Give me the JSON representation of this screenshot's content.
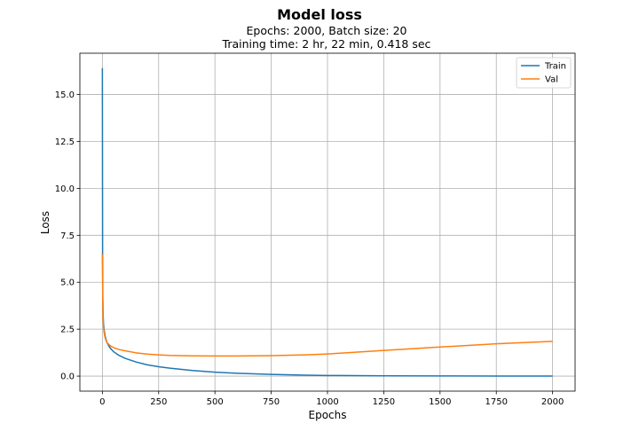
{
  "chart_data": {
    "type": "line",
    "title": "Model loss",
    "subtitle_lines": [
      "Epochs: 2000, Batch size: 20",
      "Training time: 2 hr, 22 min, 0.418 sec"
    ],
    "xlabel": "Epochs",
    "ylabel": "Loss",
    "xlim": [
      -100,
      2100
    ],
    "ylim": [
      -0.8,
      17.2
    ],
    "xticks": [
      0,
      250,
      500,
      750,
      1000,
      1250,
      1500,
      1750,
      2000
    ],
    "xtick_labels": [
      "0",
      "250",
      "500",
      "750",
      "1000",
      "1250",
      "1500",
      "1750",
      "2000"
    ],
    "yticks": [
      0,
      2.5,
      5,
      7.5,
      10,
      12.5,
      15
    ],
    "ytick_labels": [
      "0.0",
      "2.5",
      "5.0",
      "7.5",
      "10.0",
      "12.5",
      "15.0"
    ],
    "grid": true,
    "legend_position": "top-right",
    "series": [
      {
        "name": "Train",
        "color": "#1f77b4",
        "x": [
          0,
          1,
          2,
          3,
          5,
          8,
          12,
          16,
          20,
          30,
          40,
          50,
          70,
          100,
          150,
          200,
          250,
          300,
          400,
          500,
          600,
          750,
          900,
          1000,
          1250,
          1500,
          1750,
          2000
        ],
        "y": [
          16.4,
          6.2,
          4.2,
          3.4,
          2.8,
          2.45,
          2.15,
          1.95,
          1.8,
          1.58,
          1.42,
          1.3,
          1.13,
          0.95,
          0.75,
          0.6,
          0.5,
          0.42,
          0.3,
          0.21,
          0.15,
          0.09,
          0.05,
          0.035,
          0.015,
          0.008,
          0.005,
          0.003
        ]
      },
      {
        "name": "Val",
        "color": "#ff7f0e",
        "x": [
          0,
          1,
          2,
          3,
          5,
          8,
          12,
          16,
          20,
          30,
          40,
          50,
          70,
          100,
          150,
          200,
          250,
          300,
          400,
          500,
          600,
          750,
          900,
          1000,
          1250,
          1500,
          1750,
          2000
        ],
        "y": [
          6.5,
          5.0,
          3.8,
          3.1,
          2.6,
          2.3,
          2.05,
          1.9,
          1.8,
          1.67,
          1.58,
          1.52,
          1.43,
          1.35,
          1.24,
          1.17,
          1.13,
          1.1,
          1.08,
          1.07,
          1.07,
          1.09,
          1.13,
          1.18,
          1.37,
          1.55,
          1.72,
          1.85
        ]
      }
    ]
  }
}
